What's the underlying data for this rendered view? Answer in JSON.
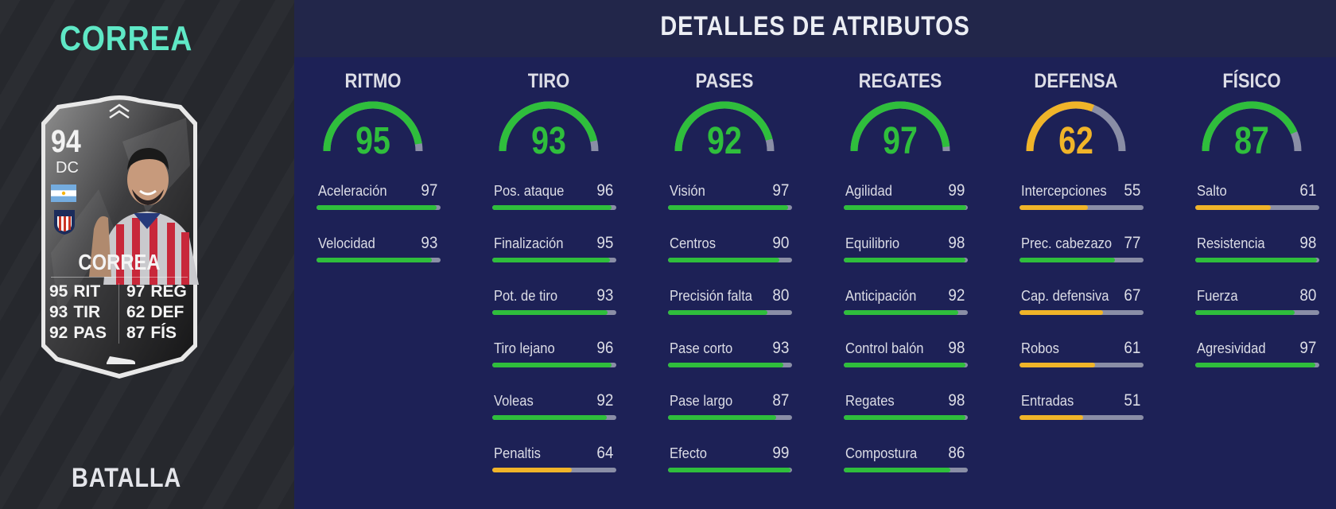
{
  "player": {
    "name": "CORREA",
    "card_name": "CORREA",
    "rating": "94",
    "position": "DC",
    "card_type": "BATALLA",
    "card_stats": [
      {
        "value": "95",
        "label": "RIT"
      },
      {
        "value": "97",
        "label": "REG"
      },
      {
        "value": "93",
        "label": "TIR"
      },
      {
        "value": "62",
        "label": "DEF"
      },
      {
        "value": "92",
        "label": "PAS"
      },
      {
        "value": "87",
        "label": "FÍS"
      }
    ]
  },
  "header": {
    "title": "DETALLES DE ATRIBUTOS"
  },
  "colors": {
    "green": "#2fbe3c",
    "yellow": "#f0b429",
    "track": "#8a8ea6",
    "accent": "#5fe8c6"
  },
  "categories": [
    {
      "title": "RITMO",
      "value": 95,
      "stats": [
        {
          "label": "Aceleración",
          "value": 97
        },
        {
          "label": "Velocidad",
          "value": 93
        }
      ]
    },
    {
      "title": "TIRO",
      "value": 93,
      "stats": [
        {
          "label": "Pos. ataque",
          "value": 96
        },
        {
          "label": "Finalización",
          "value": 95
        },
        {
          "label": "Pot. de tiro",
          "value": 93
        },
        {
          "label": "Tiro lejano",
          "value": 96
        },
        {
          "label": "Voleas",
          "value": 92
        },
        {
          "label": "Penaltis",
          "value": 64
        }
      ]
    },
    {
      "title": "PASES",
      "value": 92,
      "stats": [
        {
          "label": "Visión",
          "value": 97
        },
        {
          "label": "Centros",
          "value": 90
        },
        {
          "label": "Precisión falta",
          "value": 80
        },
        {
          "label": "Pase corto",
          "value": 93
        },
        {
          "label": "Pase largo",
          "value": 87
        },
        {
          "label": "Efecto",
          "value": 99
        }
      ]
    },
    {
      "title": "REGATES",
      "value": 97,
      "stats": [
        {
          "label": "Agilidad",
          "value": 99
        },
        {
          "label": "Equilibrio",
          "value": 98
        },
        {
          "label": "Anticipación",
          "value": 92
        },
        {
          "label": "Control balón",
          "value": 98
        },
        {
          "label": "Regates",
          "value": 98
        },
        {
          "label": "Compostura",
          "value": 86
        }
      ]
    },
    {
      "title": "DEFENSA",
      "value": 62,
      "stats": [
        {
          "label": "Intercepciones",
          "value": 55
        },
        {
          "label": "Prec. cabezazo",
          "value": 77
        },
        {
          "label": "Cap. defensiva",
          "value": 67
        },
        {
          "label": "Robos",
          "value": 61
        },
        {
          "label": "Entradas",
          "value": 51
        }
      ]
    },
    {
      "title": "FÍSICO",
      "value": 87,
      "stats": [
        {
          "label": "Salto",
          "value": 61
        },
        {
          "label": "Resistencia",
          "value": 98
        },
        {
          "label": "Fuerza",
          "value": 80
        },
        {
          "label": "Agresividad",
          "value": 97
        }
      ]
    }
  ]
}
